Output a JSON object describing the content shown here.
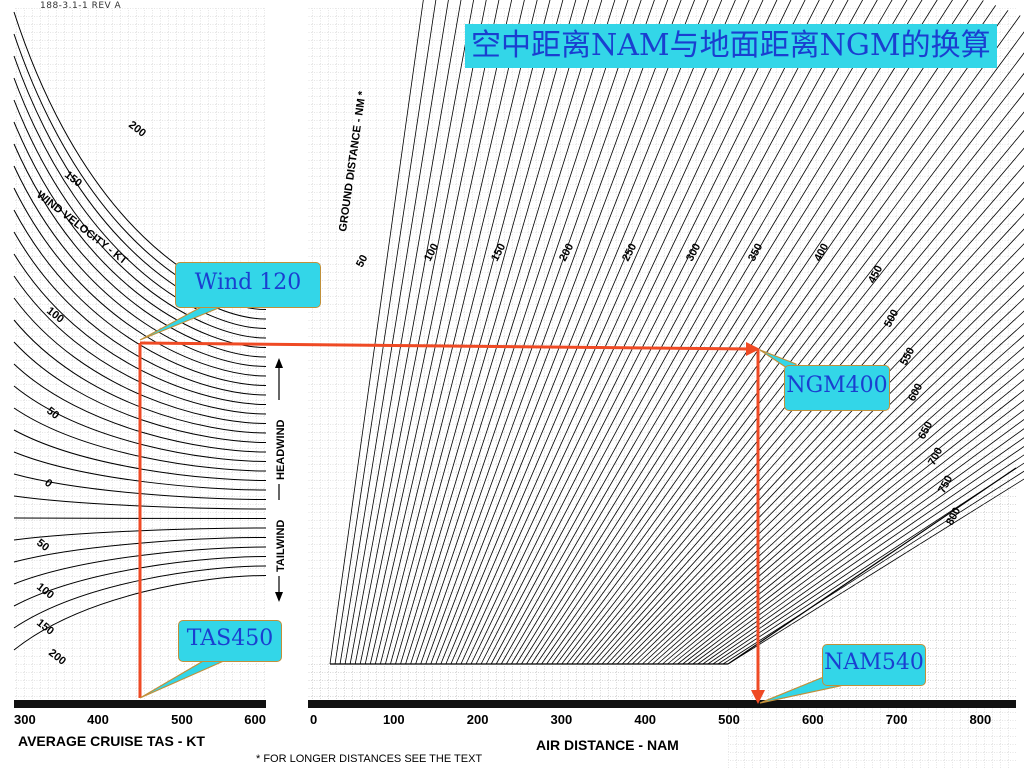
{
  "title": "空中距离NAM与地面距离NGM的换算",
  "ref_code": "188-3.1-1 REV A",
  "footnote": "* FOR LONGER DISTANCES SEE THE TEXT",
  "callouts": {
    "wind": "Wind 120",
    "ngm": "NGM400",
    "tas": "TAS450",
    "nam": "NAM540"
  },
  "colors": {
    "accent_box": "#33d6e8",
    "box_text": "#1a3fd0",
    "path": "#ef4a24"
  },
  "chart_data": [
    {
      "type": "line",
      "title": "",
      "xlabel": "AVERAGE CRUISE TAS - KT",
      "x_ticks": [
        300,
        400,
        500,
        600
      ],
      "xlim": [
        300,
        600
      ],
      "series_label": "WIND VELOCITY - KT",
      "side_labels": [
        "HEADWIND",
        "TAILWIND"
      ],
      "curve_labels": [
        "200",
        "150",
        "100",
        "50",
        "0",
        "50",
        "100",
        "150",
        "200"
      ],
      "grid": true
    },
    {
      "type": "line",
      "title": "",
      "xlabel": "AIR DISTANCE - NAM",
      "x_ticks": [
        0,
        100,
        200,
        300,
        400,
        500,
        600,
        700,
        800
      ],
      "xlim": [
        0,
        800
      ],
      "series_label": "GROUND DISTANCE - NM *",
      "curve_labels": [
        "50",
        "100",
        "150",
        "200",
        "250",
        "300",
        "350",
        "400",
        "450",
        "500",
        "550",
        "600",
        "650",
        "700",
        "750",
        "800"
      ],
      "grid": true
    }
  ],
  "example": {
    "tas_kt": 450,
    "wind_kt": 120,
    "air_distance_nam": 540,
    "ground_distance_ngm": 400
  }
}
